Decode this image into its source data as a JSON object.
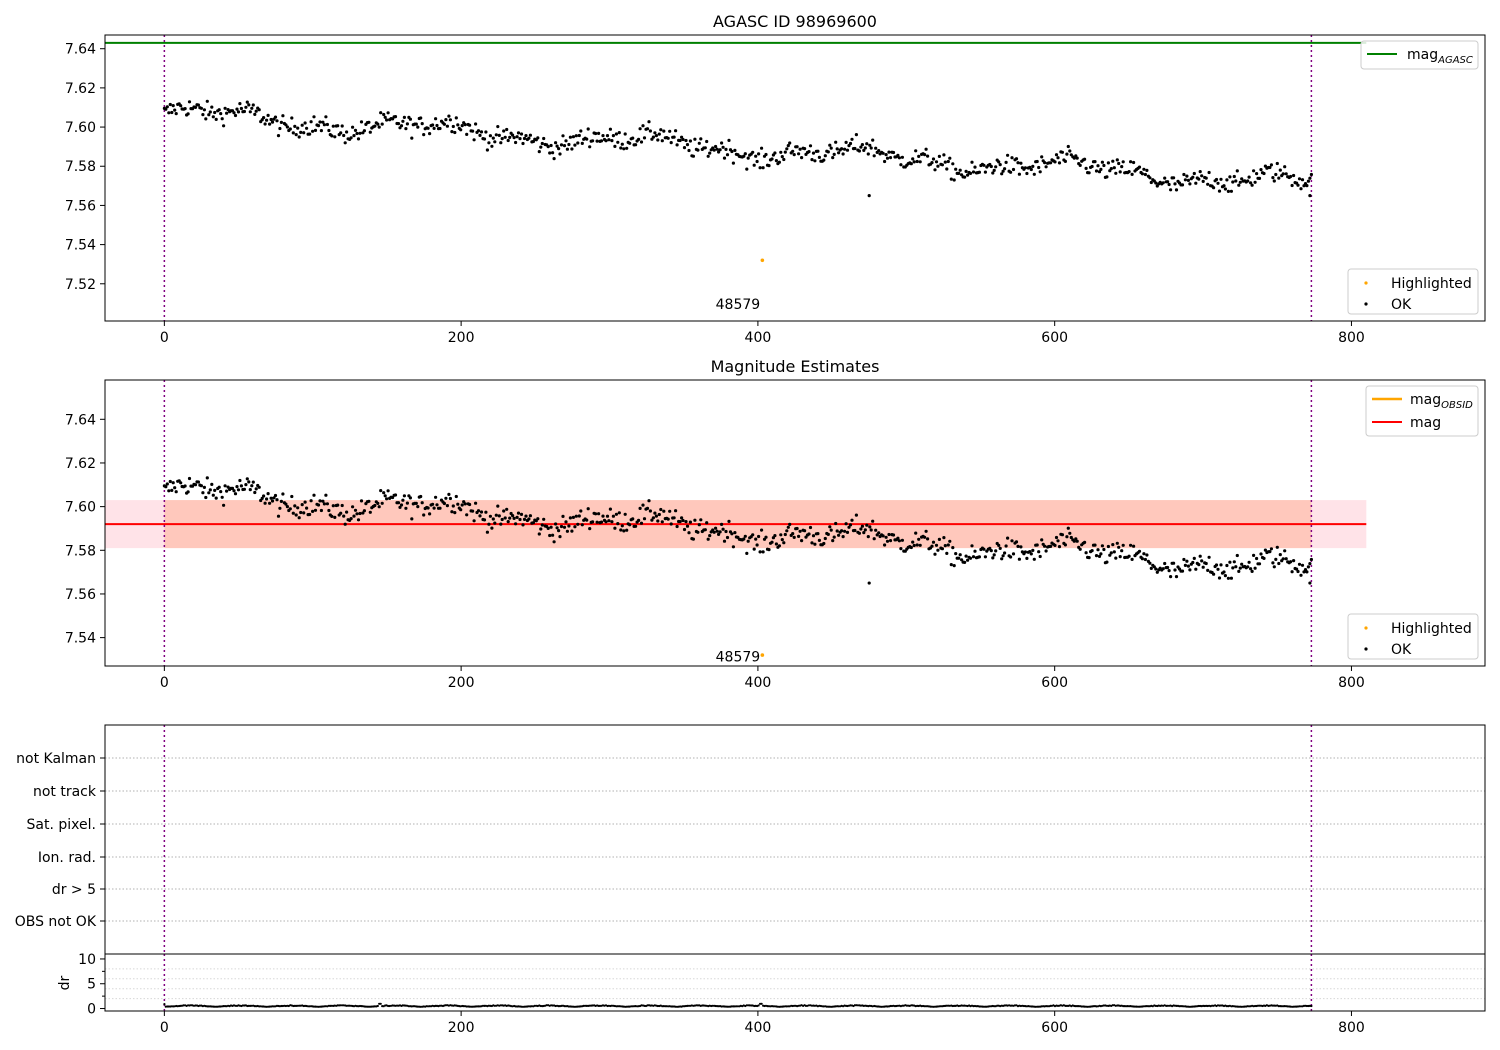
{
  "chart_data": [
    {
      "type": "scatter",
      "title": "AGASC ID 98969600",
      "xlim": [
        -40,
        890
      ],
      "ylim": [
        7.501,
        7.647
      ],
      "xticks": [
        0,
        200,
        400,
        600,
        800
      ],
      "yticks": [
        7.52,
        7.54,
        7.56,
        7.58,
        7.6,
        7.62,
        7.64
      ],
      "ytick_labels": [
        "7.52",
        "7.54",
        "7.56",
        "7.58",
        "7.60",
        "7.62",
        "7.64"
      ],
      "vlines": [
        0,
        773
      ],
      "hline": {
        "name": "mag_AGASC",
        "label_main": "mag",
        "label_sub": "AGASC",
        "value": 7.643,
        "color": "#008000",
        "x_range": [
          -40,
          810
        ]
      },
      "series": [
        {
          "name": "OK",
          "color": "#000000",
          "trend": {
            "n": 775,
            "x_start": 0,
            "x_end": 773,
            "y_start": 7.607,
            "y_end": 7.571,
            "scatter": 0.0045
          }
        },
        {
          "name": "Highlighted",
          "color": "#FFA500",
          "points": [
            [
              403,
              7.532
            ]
          ]
        }
      ],
      "outliers": [
        [
          475,
          7.565
        ],
        [
          772,
          7.565
        ]
      ],
      "annotation": {
        "text": "48579",
        "x": 400,
        "y": 7.503
      },
      "legend_lines": [
        "mag_AGASC"
      ],
      "legend_lines_position": "top-right",
      "legend_points": [
        "Highlighted",
        "OK"
      ],
      "legend_points_position": "bottom-right"
    },
    {
      "type": "scatter",
      "title": "Magnitude Estimates",
      "xlim": [
        -40,
        890
      ],
      "ylim": [
        7.527,
        7.658
      ],
      "xticks": [
        0,
        200,
        400,
        600,
        800
      ],
      "yticks": [
        7.54,
        7.56,
        7.58,
        7.6,
        7.62,
        7.64
      ],
      "ytick_labels": [
        "7.54",
        "7.56",
        "7.58",
        "7.60",
        "7.62",
        "7.64"
      ],
      "vlines": [
        0,
        773
      ],
      "band_outer": {
        "x_range": [
          -40,
          810
        ],
        "y_range": [
          7.581,
          7.603
        ],
        "color": "#FFC0CB"
      },
      "band_inner": {
        "x_range": [
          0,
          773
        ],
        "y_range": [
          7.581,
          7.603
        ],
        "color": "#FFA07A"
      },
      "hline": {
        "name": "mag",
        "label_main": "mag",
        "value": 7.592,
        "color": "#FF0000",
        "x_range": [
          -40,
          810
        ]
      },
      "obsid_line": {
        "name": "mag_OBSID",
        "label_main": "mag",
        "label_sub": "OBSID",
        "color": "#FFA500"
      },
      "series": [
        {
          "name": "OK",
          "color": "#000000",
          "trend": {
            "n": 775,
            "x_start": 0,
            "x_end": 773,
            "y_start": 7.607,
            "y_end": 7.571,
            "scatter": 0.0045
          }
        },
        {
          "name": "Highlighted",
          "color": "#FFA500",
          "points": [
            [
              403,
              7.532
            ]
          ]
        }
      ],
      "outliers": [
        [
          475,
          7.565
        ],
        [
          772,
          7.565
        ]
      ],
      "annotation": {
        "text": "48579",
        "x": 400,
        "y": 7.53
      },
      "legend_lines": [
        "mag_OBSID",
        "mag"
      ],
      "legend_lines_position": "top-right",
      "legend_points": [
        "Highlighted",
        "OK"
      ],
      "legend_points_position": "bottom-right"
    },
    {
      "type": "table",
      "title": "",
      "categories": [
        "not Kalman",
        "not track",
        "Sat. pixel.",
        "Ion. rad.",
        "dr > 5",
        "OBS not OK"
      ],
      "xlim": [
        -40,
        890
      ],
      "vlines": [
        0,
        773
      ],
      "flags_set": []
    },
    {
      "type": "line",
      "title": "",
      "ylabel": "dr",
      "xlim": [
        -40,
        890
      ],
      "ylim": [
        -0.5,
        11
      ],
      "xticks": [
        0,
        200,
        400,
        600,
        800
      ],
      "yticks": [
        0,
        5,
        10
      ],
      "ytick_labels": [
        "0",
        "5",
        "10"
      ],
      "vlines": [
        0,
        773
      ],
      "series": [
        {
          "name": "dr",
          "color": "#000000",
          "trend": {
            "n": 775,
            "x_start": 0,
            "x_end": 773,
            "base": 0.35,
            "amplitude": 0.3
          }
        }
      ]
    }
  ]
}
